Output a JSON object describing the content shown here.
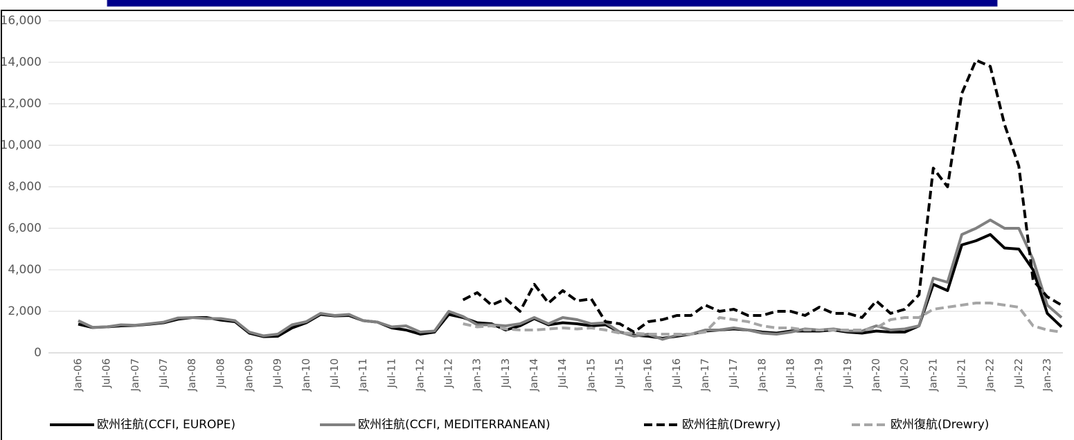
{
  "chart_data": {
    "type": "line",
    "categories": [
      "Jan-06",
      null,
      "Jul-06",
      null,
      "Jan-07",
      null,
      "Jul-07",
      null,
      "Jan-08",
      null,
      "Jul-08",
      null,
      "Jan-09",
      null,
      "Jul-09",
      null,
      "Jan-10",
      null,
      "Jul-10",
      null,
      "Jan-11",
      null,
      "Jul-11",
      null,
      "Jan-12",
      null,
      "Jul-12",
      null,
      "Jan-13",
      null,
      "Jul-13",
      null,
      "Jan-14",
      null,
      "Jul-14",
      null,
      "Jan-15",
      null,
      "Jul-15",
      null,
      "Jan-16",
      null,
      "Jul-16",
      null,
      "Jan-17",
      null,
      "Jul-17",
      null,
      "Jan-18",
      null,
      "Jul-18",
      null,
      "Jan-19",
      null,
      "Jul-19",
      null,
      "Jan-20",
      null,
      "Jul-20",
      null,
      "Jan-21",
      null,
      "Jul-21",
      null,
      "Jan-22",
      null,
      "Jul-22",
      null,
      "Jan-23",
      null
    ],
    "series": [
      {
        "name": "欧州往航(CCFI, EUROPE)",
        "color": "#000000",
        "dashed": false,
        "values": [
          1380,
          1220,
          1250,
          1300,
          1320,
          1380,
          1450,
          1620,
          1700,
          1700,
          1580,
          1500,
          950,
          780,
          800,
          1200,
          1450,
          1850,
          1780,
          1800,
          1550,
          1480,
          1200,
          1100,
          900,
          1000,
          1850,
          1700,
          1450,
          1400,
          1100,
          1300,
          1650,
          1350,
          1450,
          1400,
          1300,
          1350,
          1000,
          850,
          800,
          700,
          800,
          900,
          1050,
          1100,
          1150,
          1100,
          1000,
          950,
          1050,
          1050,
          1050,
          1100,
          1000,
          950,
          1050,
          1000,
          1000,
          1300,
          3300,
          3000,
          5200,
          5400,
          5700,
          5050,
          5000,
          4000,
          1900,
          1250
        ]
      },
      {
        "name": "欧州往航(CCFI, MEDITERRANEAN)",
        "color": "#808080",
        "dashed": false,
        "values": [
          1550,
          1230,
          1250,
          1350,
          1330,
          1400,
          1480,
          1680,
          1700,
          1650,
          1650,
          1550,
          1000,
          820,
          900,
          1350,
          1500,
          1900,
          1800,
          1850,
          1550,
          1480,
          1250,
          1300,
          1000,
          1050,
          2000,
          1750,
          1350,
          1350,
          1300,
          1400,
          1700,
          1400,
          1700,
          1600,
          1400,
          1450,
          1000,
          800,
          900,
          650,
          850,
          900,
          1100,
          1100,
          1200,
          1100,
          950,
          900,
          1000,
          1150,
          1100,
          1150,
          1050,
          1050,
          1300,
          1100,
          1150,
          1300,
          3600,
          3400,
          5700,
          6000,
          6400,
          6000,
          6000,
          4500,
          2300,
          1700
        ]
      },
      {
        "name": "欧州往航(Drewry)",
        "color": "#000000",
        "dashed": true,
        "values": [
          null,
          null,
          null,
          null,
          null,
          null,
          null,
          null,
          null,
          null,
          null,
          null,
          null,
          null,
          null,
          null,
          null,
          null,
          null,
          null,
          null,
          null,
          null,
          null,
          null,
          null,
          null,
          2550,
          2900,
          2300,
          2600,
          2000,
          3300,
          2400,
          3000,
          2500,
          2600,
          1500,
          1400,
          1000,
          1500,
          1600,
          1800,
          1800,
          2300,
          2000,
          2100,
          1800,
          1800,
          2000,
          2000,
          1800,
          2200,
          1900,
          1900,
          1700,
          2500,
          1900,
          2100,
          2800,
          8900,
          8000,
          12500,
          14100,
          13800,
          11000,
          9000,
          3500,
          2700,
          2300
        ]
      },
      {
        "name": "欧州復航(Drewry)",
        "color": "#a6a6a6",
        "dashed": true,
        "values": [
          null,
          null,
          null,
          null,
          null,
          null,
          null,
          null,
          null,
          null,
          null,
          null,
          null,
          null,
          null,
          null,
          null,
          null,
          null,
          null,
          null,
          null,
          null,
          null,
          null,
          null,
          null,
          1400,
          1250,
          1300,
          1150,
          1100,
          1100,
          1150,
          1200,
          1150,
          1200,
          1100,
          950,
          950,
          900,
          900,
          900,
          900,
          1000,
          1700,
          1600,
          1500,
          1300,
          1200,
          1200,
          1100,
          1100,
          1100,
          1100,
          1100,
          1200,
          1600,
          1700,
          1700,
          2100,
          2200,
          2300,
          2400,
          2400,
          2300,
          2200,
          1300,
          1100,
          1000
        ]
      }
    ],
    "ylim": [
      0,
      16000
    ],
    "yticks": [
      0,
      {
        "value": 2000,
        "label": "2,000"
      },
      {
        "value": 4000,
        "label": "4,000"
      },
      {
        "value": 6000,
        "label": "6,000"
      },
      {
        "value": 8000,
        "label": "8,000"
      },
      {
        "value": 10000,
        "label": "10,000"
      },
      {
        "value": 12000,
        "label": "12,000"
      },
      {
        "value": 14000,
        "label": "14,000"
      },
      {
        "value": 16000,
        "label": "16,000"
      }
    ],
    "grid": true
  }
}
